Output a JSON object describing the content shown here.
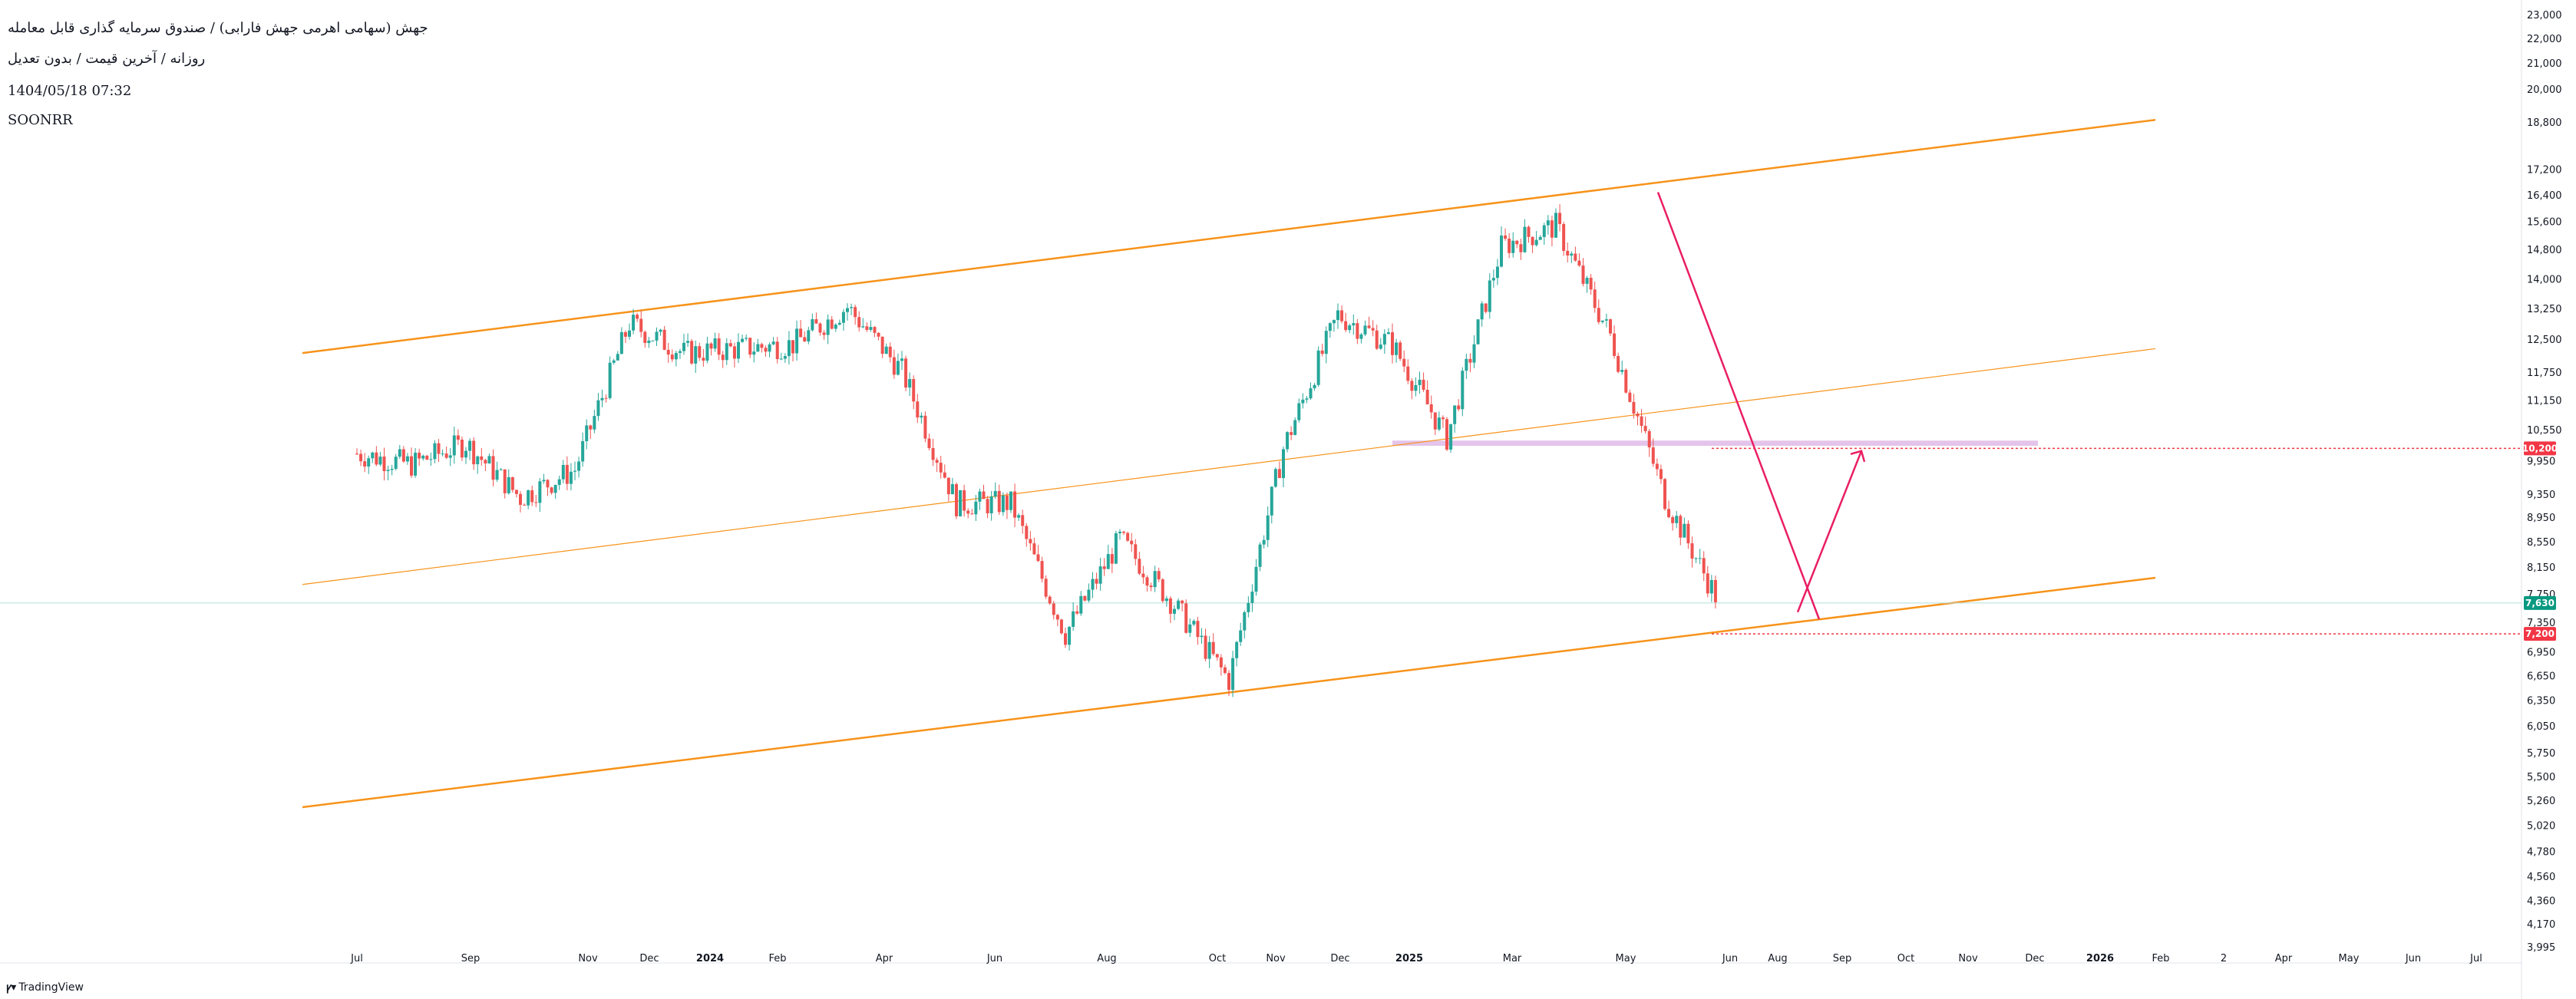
{
  "header": {
    "title": "جهش (سهامی اهرمی جهش فارابی) / صندوق سرمایه گذاری قابل معامله",
    "subtitle": "روزانه / آخرین قیمت / بدون تعدیل",
    "datetime": "1404/05/18 07:32",
    "symbol": "SOONRR"
  },
  "brand": {
    "name": "TradingView",
    "logo_icon": "tradingview-logo-icon"
  },
  "colors": {
    "background": "#ffffff",
    "up": "#26a69a",
    "down": "#ef5350",
    "channel": "#f7931a",
    "trendline": "#e91e63",
    "range_band": "#ce93d8",
    "last_price": "#089981",
    "level": "#f23645"
  },
  "chart_data": {
    "type": "candlestick",
    "title": "",
    "y_axis": {
      "scale": "log",
      "tick_labels": [
        "23,000",
        "22,000",
        "21,000",
        "20,000",
        "18,800",
        "17,200",
        "16,400",
        "15,600",
        "14,800",
        "14,000",
        "13,250",
        "12,500",
        "11,750",
        "11,150",
        "10,550",
        "9,950",
        "9,350",
        "8,950",
        "8,550",
        "8,150",
        "7,750",
        "7,350",
        "6,950",
        "6,650",
        "6,350",
        "6,050",
        "5,750",
        "5,500",
        "5,260",
        "5,020",
        "4,780",
        "4,560",
        "4,360",
        "4,170",
        "3,995"
      ],
      "range": [
        3995,
        23000
      ]
    },
    "x_axis": {
      "tick_labels": [
        "Jul",
        "Sep",
        "Nov",
        "Dec",
        "2024",
        "Feb",
        "Apr",
        "Jun",
        "Aug",
        "Oct",
        "Nov",
        "Dec",
        "2025",
        "Mar",
        "May",
        "Jun",
        "Aug",
        "Sep",
        "Oct",
        "Nov",
        "Dec",
        "2026",
        "Feb",
        "2",
        "Apr",
        "May",
        "Jun",
        "Jul"
      ],
      "bold_labels": [
        "2024",
        "2025",
        "2026"
      ]
    },
    "price_labels": [
      {
        "value": 10200,
        "label": "10,200",
        "color": "#f23645"
      },
      {
        "value": 7630,
        "label": "7,630",
        "color": "#089981"
      },
      {
        "value": 7200,
        "label": "7,200",
        "color": "#f23645"
      }
    ],
    "series": [
      {
        "period": "Jul 2023",
        "close": 10100
      },
      {
        "period": "Aug 2023",
        "close": 9900
      },
      {
        "period": "Sep 2023",
        "close": 10300
      },
      {
        "period": "Oct 2023",
        "close": 9300
      },
      {
        "period": "Nov 2023",
        "close": 9800
      },
      {
        "period": "Dec 2023",
        "close": 12900
      },
      {
        "period": "Jan 2024",
        "close": 12200
      },
      {
        "period": "Feb 2024",
        "close": 12300
      },
      {
        "period": "Mar 2024",
        "close": 12400
      },
      {
        "period": "Apr 2024",
        "close": 13300
      },
      {
        "period": "May 2024",
        "close": 11800
      },
      {
        "period": "Jun 2024",
        "close": 9200
      },
      {
        "period": "Jul 2024",
        "close": 9200
      },
      {
        "period": "Aug 2024",
        "close": 7200
      },
      {
        "period": "Sep 2024",
        "close": 8600
      },
      {
        "period": "Oct 2024",
        "close": 7600
      },
      {
        "period": "Nov 2024",
        "close": 6600
      },
      {
        "period": "Dec 2024",
        "close": 10200
      },
      {
        "period": "Jan 2025",
        "close": 13100
      },
      {
        "period": "Feb 2025",
        "close": 12400
      },
      {
        "period": "Mar 2025",
        "close": 10400
      },
      {
        "period": "Apr 2025",
        "close": 14900
      },
      {
        "period": "May 2025",
        "close": 15500
      },
      {
        "period": "Jun 2025",
        "close": 12600
      },
      {
        "period": "Jul 2025",
        "close": 9300
      },
      {
        "period": "Aug 2025",
        "close": 7630
      }
    ],
    "drawings": {
      "channel_upper": [
        [
          "Jun 2023",
          12200
        ],
        [
          "Apr 2026",
          18900
        ]
      ],
      "channel_middle": [
        [
          "Jun 2023",
          7900
        ],
        [
          "Apr 2026",
          12300
        ]
      ],
      "channel_lower": [
        [
          "Jun 2023",
          5200
        ],
        [
          "Apr 2026",
          8000
        ]
      ],
      "trendline": [
        [
          "May 2025",
          16500
        ],
        [
          "Aug 2025",
          7400
        ]
      ],
      "projection_arrow": [
        [
          "Aug 2025",
          7500
        ],
        [
          "Aug 2025",
          10150
        ]
      ],
      "range_band": [
        10250,
        10350
      ]
    }
  }
}
